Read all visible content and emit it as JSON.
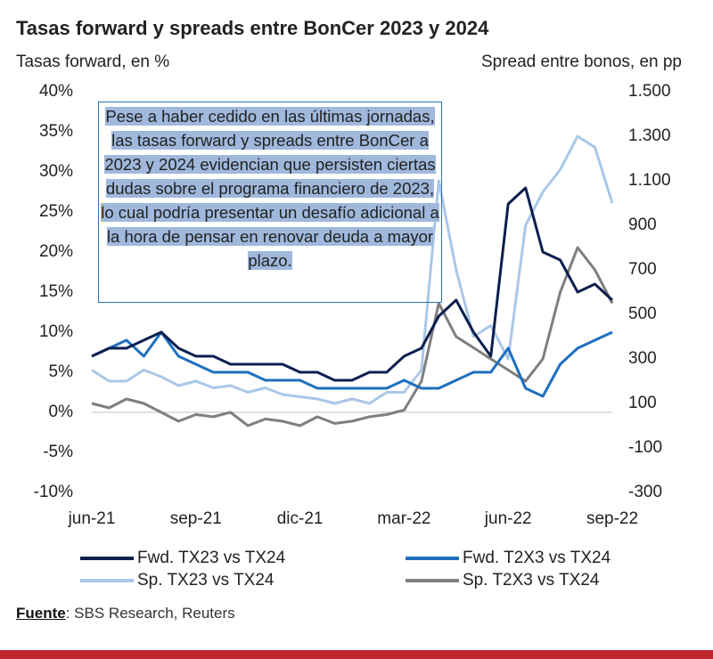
{
  "chart_data": {
    "type": "line",
    "title": "Tasas forward y spreads entre BonCer 2023 y 2024",
    "y_label": "Tasas forward, en %",
    "y2_label": "Spread entre bonos, en pp",
    "annotation": "Pese a haber cedido en las últimas jornadas, las tasas forward y spreads entre BonCer a 2023 y 2024 evidencian que persisten ciertas dudas sobre el programa financiero de 2023, lo cual podría presentar un desafío adicional a la hora de pensar en renovar deuda a mayor plazo.",
    "source": [
      "Fuente",
      ": SBS Research, Reuters"
    ],
    "categories": [
      "jun-21",
      null,
      null,
      null,
      null,
      null,
      "sep-21",
      null,
      null,
      null,
      null,
      null,
      "dic-21",
      null,
      null,
      null,
      null,
      null,
      "mar-22",
      null,
      null,
      null,
      null,
      null,
      "jun-22",
      null,
      null,
      null,
      null,
      null,
      "sep-22"
    ],
    "ylim": [
      -10,
      40
    ],
    "yticks": [
      {
        "value": -10,
        "label": "-10%"
      },
      {
        "value": -5,
        "label": "-5%"
      },
      {
        "value": 0,
        "label": "0%"
      },
      {
        "value": 5,
        "label": "5%"
      },
      {
        "value": 10,
        "label": "10%"
      },
      {
        "value": 15,
        "label": "15%"
      },
      {
        "value": 20,
        "label": "20%"
      },
      {
        "value": 25,
        "label": "25%"
      },
      {
        "value": 30,
        "label": "30%"
      },
      {
        "value": 35,
        "label": "35%"
      },
      {
        "value": 40,
        "label": "40%"
      }
    ],
    "y2lim": [
      -300,
      1500
    ],
    "y2ticks": [
      -300,
      -100,
      100,
      300,
      500,
      700,
      900,
      {
        "value": 1100,
        "label": "1.100"
      },
      {
        "value": 1300,
        "label": "1.300"
      },
      {
        "value": 1500,
        "label": "1.500"
      }
    ],
    "zero_line": true,
    "series": [
      {
        "name": "Fwd. TX23 vs TX24",
        "color": "#0b1f4f",
        "values": [
          7,
          8,
          8,
          9,
          10,
          8,
          7,
          7,
          6,
          6,
          6,
          6,
          5,
          5,
          4,
          4,
          5,
          5,
          7,
          8,
          12,
          14,
          10,
          7,
          26,
          28,
          20,
          19,
          15,
          16,
          14
        ]
      },
      {
        "name": "Fwd. T2X3 vs TX24",
        "color": "#1f6fbf",
        "values": [
          7,
          8,
          9,
          7,
          10,
          7,
          6,
          5,
          5,
          5,
          4,
          4,
          4,
          3,
          3,
          3,
          3,
          3,
          4,
          3,
          3,
          4,
          5,
          5,
          8,
          3,
          2,
          6,
          8,
          9,
          10
        ]
      },
      {
        "name": "Sp. TX23 vs TX24",
        "color": "#a9c8e8",
        "axis": "y2",
        "values": [
          250,
          200,
          200,
          250,
          220,
          180,
          200,
          170,
          180,
          150,
          170,
          140,
          130,
          120,
          100,
          120,
          100,
          150,
          150,
          250,
          1100,
          700,
          400,
          450,
          300,
          900,
          1050,
          1150,
          1300,
          1250,
          1000
        ]
      },
      {
        "name": "Sp. T2X3 vs TX24",
        "color": "#7f7f7f",
        "axis": "y2",
        "values": [
          100,
          80,
          120,
          100,
          60,
          20,
          50,
          40,
          60,
          0,
          30,
          20,
          0,
          40,
          10,
          20,
          40,
          50,
          70,
          200,
          550,
          400,
          350,
          300,
          250,
          200,
          300,
          600,
          800,
          700,
          550
        ]
      }
    ]
  }
}
